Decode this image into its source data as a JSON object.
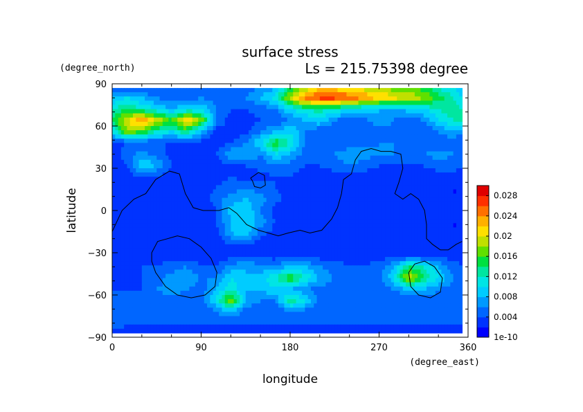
{
  "chart_data": {
    "type": "heatmap",
    "title": "surface stress",
    "subtitle": "Ls = 215.75398 degree",
    "xlabel": "longitude",
    "ylabel": "latitude",
    "x_units": "(degree_east)",
    "y_units": "(degree_north)",
    "xlim": [
      0,
      360
    ],
    "ylim": [
      -90,
      90
    ],
    "x_ticks": [
      "0",
      "90",
      "180",
      "270",
      "360"
    ],
    "y_ticks": [
      "90",
      "60",
      "30",
      "0",
      "−30",
      "−60",
      "−90"
    ],
    "x_tick_values": [
      0,
      90,
      180,
      270,
      360
    ],
    "y_tick_values": [
      90,
      60,
      30,
      0,
      -30,
      -60,
      -90
    ],
    "field_extent": {
      "lon": [
        0,
        354
      ],
      "lat": [
        -87,
        87
      ]
    },
    "colorbar": {
      "labels": [
        "0.028",
        "0.024",
        "0.02",
        "0.016",
        "0.012",
        "0.008",
        "0.004",
        "1e-10"
      ],
      "label_values": [
        0.028,
        0.024,
        0.02,
        0.016,
        0.012,
        0.008,
        0.004,
        0.0
      ],
      "range": [
        0.0,
        0.03
      ],
      "colors": [
        "#0000ff",
        "#0033ff",
        "#0066ff",
        "#0099ff",
        "#00ccff",
        "#00e5e5",
        "#00e6a0",
        "#00e040",
        "#60e000",
        "#c0e000",
        "#ffe000",
        "#ffb000",
        "#ff7000",
        "#ff3000",
        "#e00000"
      ]
    },
    "field_lats": [
      87,
      80,
      72,
      64,
      56,
      48,
      40,
      32,
      24,
      16,
      8,
      0,
      -8,
      -16,
      -24,
      -32,
      -40,
      -48,
      -56,
      -64,
      -72,
      -80,
      -87
    ],
    "field_lons": [
      0,
      15,
      30,
      45,
      60,
      75,
      90,
      105,
      120,
      135,
      150,
      165,
      180,
      195,
      210,
      225,
      240,
      255,
      270,
      285,
      300,
      315,
      330,
      345,
      354
    ],
    "field_values": [
      [
        0.004,
        0.004,
        0.004,
        0.004,
        0.004,
        0.004,
        0.005,
        0.004,
        0.004,
        0.005,
        0.006,
        0.008,
        0.014,
        0.018,
        0.021,
        0.021,
        0.02,
        0.019,
        0.018,
        0.017,
        0.016,
        0.015,
        0.012,
        0.01,
        0.008
      ],
      [
        0.008,
        0.01,
        0.008,
        0.006,
        0.005,
        0.005,
        0.006,
        0.005,
        0.005,
        0.006,
        0.008,
        0.011,
        0.019,
        0.025,
        0.027,
        0.027,
        0.026,
        0.024,
        0.022,
        0.021,
        0.02,
        0.018,
        0.015,
        0.012,
        0.01
      ],
      [
        0.012,
        0.014,
        0.012,
        0.01,
        0.008,
        0.01,
        0.01,
        0.006,
        0.004,
        0.004,
        0.005,
        0.006,
        0.01,
        0.012,
        0.013,
        0.012,
        0.01,
        0.009,
        0.008,
        0.008,
        0.009,
        0.01,
        0.012,
        0.014,
        0.012
      ],
      [
        0.014,
        0.02,
        0.024,
        0.02,
        0.016,
        0.022,
        0.018,
        0.006,
        0.003,
        0.003,
        0.004,
        0.004,
        0.006,
        0.008,
        0.01,
        0.006,
        0.004,
        0.005,
        0.008,
        0.006,
        0.004,
        0.006,
        0.01,
        0.012,
        0.014
      ],
      [
        0.01,
        0.018,
        0.016,
        0.012,
        0.01,
        0.014,
        0.008,
        0.003,
        0.003,
        0.003,
        0.006,
        0.008,
        0.01,
        0.006,
        0.004,
        0.004,
        0.004,
        0.004,
        0.004,
        0.005,
        0.004,
        0.004,
        0.006,
        0.008,
        0.006
      ],
      [
        0.003,
        0.004,
        0.004,
        0.004,
        0.004,
        0.003,
        0.003,
        0.003,
        0.004,
        0.006,
        0.01,
        0.016,
        0.012,
        0.006,
        0.004,
        0.004,
        0.004,
        0.005,
        0.006,
        0.006,
        0.005,
        0.004,
        0.004,
        0.005,
        0.004
      ],
      [
        0.003,
        0.005,
        0.007,
        0.005,
        0.003,
        0.003,
        0.003,
        0.004,
        0.008,
        0.008,
        0.006,
        0.01,
        0.008,
        0.005,
        0.004,
        0.006,
        0.008,
        0.007,
        0.006,
        0.006,
        0.005,
        0.006,
        0.007,
        0.006,
        0.004
      ],
      [
        0.003,
        0.004,
        0.01,
        0.008,
        0.004,
        0.003,
        0.003,
        0.003,
        0.004,
        0.004,
        0.005,
        0.006,
        0.005,
        0.004,
        0.004,
        0.005,
        0.006,
        0.005,
        0.004,
        0.004,
        0.004,
        0.004,
        0.005,
        0.005,
        0.004
      ],
      [
        0.002,
        0.003,
        0.004,
        0.004,
        0.003,
        0.003,
        0.003,
        0.003,
        0.004,
        0.003,
        0.003,
        0.004,
        0.004,
        0.003,
        0.003,
        0.003,
        0.003,
        0.003,
        0.003,
        0.003,
        0.003,
        0.003,
        0.003,
        0.003,
        0.003
      ],
      [
        0.002,
        0.003,
        0.003,
        0.003,
        0.002,
        0.002,
        0.003,
        0.004,
        0.005,
        0.006,
        0.005,
        0.004,
        0.003,
        0.003,
        0.002,
        0.002,
        0.002,
        0.002,
        0.002,
        0.002,
        0.002,
        0.002,
        0.002,
        0.002,
        0.002
      ],
      [
        0.002,
        0.002,
        0.002,
        0.002,
        0.002,
        0.002,
        0.003,
        0.005,
        0.007,
        0.008,
        0.007,
        0.005,
        0.003,
        0.002,
        0.002,
        0.002,
        0.002,
        0.002,
        0.002,
        0.002,
        0.002,
        0.002,
        0.002,
        0.002,
        0.002
      ],
      [
        0.002,
        0.002,
        0.002,
        0.002,
        0.002,
        0.002,
        0.002,
        0.004,
        0.009,
        0.01,
        0.006,
        0.003,
        0.002,
        0.002,
        0.002,
        0.002,
        0.002,
        0.002,
        0.002,
        0.002,
        0.002,
        0.002,
        0.002,
        0.002,
        0.002
      ],
      [
        0.002,
        0.002,
        0.002,
        0.002,
        0.002,
        0.002,
        0.002,
        0.004,
        0.008,
        0.01,
        0.007,
        0.004,
        0.002,
        0.002,
        0.002,
        0.002,
        0.002,
        0.002,
        0.002,
        0.002,
        0.002,
        0.002,
        0.002,
        0.002,
        0.002
      ],
      [
        0.002,
        0.002,
        0.002,
        0.002,
        0.002,
        0.002,
        0.002,
        0.003,
        0.008,
        0.009,
        0.005,
        0.003,
        0.002,
        0.002,
        0.002,
        0.002,
        0.002,
        0.002,
        0.002,
        0.002,
        0.002,
        0.002,
        0.002,
        0.002,
        0.002
      ],
      [
        0.002,
        0.002,
        0.002,
        0.002,
        0.002,
        0.002,
        0.002,
        0.003,
        0.004,
        0.004,
        0.003,
        0.002,
        0.002,
        0.002,
        0.002,
        0.002,
        0.002,
        0.002,
        0.002,
        0.002,
        0.002,
        0.002,
        0.002,
        0.002,
        0.002
      ],
      [
        0.003,
        0.003,
        0.003,
        0.003,
        0.003,
        0.003,
        0.003,
        0.003,
        0.003,
        0.003,
        0.003,
        0.003,
        0.003,
        0.003,
        0.003,
        0.003,
        0.003,
        0.003,
        0.003,
        0.003,
        0.003,
        0.003,
        0.003,
        0.003,
        0.003
      ],
      [
        0.003,
        0.003,
        0.004,
        0.004,
        0.005,
        0.006,
        0.004,
        0.004,
        0.007,
        0.008,
        0.007,
        0.006,
        0.009,
        0.008,
        0.006,
        0.005,
        0.004,
        0.004,
        0.005,
        0.008,
        0.014,
        0.012,
        0.008,
        0.005,
        0.004
      ],
      [
        0.004,
        0.003,
        0.004,
        0.005,
        0.007,
        0.008,
        0.006,
        0.006,
        0.01,
        0.008,
        0.009,
        0.012,
        0.016,
        0.012,
        0.008,
        0.006,
        0.005,
        0.004,
        0.005,
        0.01,
        0.02,
        0.014,
        0.01,
        0.006,
        0.004
      ],
      [
        0.004,
        0.004,
        0.004,
        0.006,
        0.007,
        0.006,
        0.005,
        0.008,
        0.012,
        0.008,
        0.008,
        0.01,
        0.008,
        0.006,
        0.005,
        0.005,
        0.004,
        0.004,
        0.004,
        0.006,
        0.008,
        0.008,
        0.006,
        0.005,
        0.004
      ],
      [
        0.004,
        0.004,
        0.004,
        0.005,
        0.005,
        0.005,
        0.005,
        0.01,
        0.018,
        0.008,
        0.006,
        0.006,
        0.014,
        0.01,
        0.005,
        0.005,
        0.004,
        0.004,
        0.004,
        0.004,
        0.005,
        0.005,
        0.005,
        0.004,
        0.004
      ],
      [
        0.004,
        0.004,
        0.004,
        0.004,
        0.004,
        0.004,
        0.004,
        0.006,
        0.008,
        0.005,
        0.004,
        0.004,
        0.006,
        0.005,
        0.004,
        0.004,
        0.004,
        0.004,
        0.004,
        0.004,
        0.004,
        0.004,
        0.004,
        0.004,
        0.004
      ],
      [
        0.006,
        0.004,
        0.004,
        0.004,
        0.004,
        0.004,
        0.004,
        0.004,
        0.004,
        0.004,
        0.004,
        0.004,
        0.004,
        0.004,
        0.004,
        0.004,
        0.004,
        0.004,
        0.004,
        0.004,
        0.004,
        0.004,
        0.004,
        0.004,
        0.004
      ],
      [
        0.003,
        0.003,
        0.003,
        0.003,
        0.003,
        0.003,
        0.003,
        0.003,
        0.003,
        0.003,
        0.003,
        0.003,
        0.003,
        0.003,
        0.003,
        0.003,
        0.003,
        0.003,
        0.003,
        0.003,
        0.003,
        0.003,
        0.003,
        0.003,
        0.003
      ]
    ],
    "contours": [
      [
        [
          0,
          -15
        ],
        [
          10,
          0
        ],
        [
          22,
          8
        ],
        [
          34,
          12
        ],
        [
          44,
          22
        ],
        [
          58,
          28
        ],
        [
          68,
          26
        ],
        [
          74,
          12
        ],
        [
          82,
          2
        ],
        [
          92,
          0
        ],
        [
          100,
          0
        ],
        [
          108,
          0
        ],
        [
          118,
          2
        ],
        [
          126,
          -2
        ],
        [
          136,
          -10
        ],
        [
          148,
          -14
        ],
        [
          158,
          -16
        ],
        [
          168,
          -18
        ],
        [
          178,
          -16
        ],
        [
          190,
          -14
        ],
        [
          200,
          -16
        ],
        [
          212,
          -14
        ],
        [
          222,
          -6
        ],
        [
          228,
          2
        ],
        [
          232,
          12
        ],
        [
          234,
          22
        ],
        [
          242,
          26
        ],
        [
          246,
          36
        ],
        [
          252,
          42
        ],
        [
          262,
          44
        ],
        [
          272,
          42
        ],
        [
          282,
          42
        ],
        [
          292,
          40
        ],
        [
          294,
          30
        ],
        [
          290,
          20
        ],
        [
          286,
          12
        ],
        [
          294,
          8
        ],
        [
          302,
          12
        ],
        [
          310,
          8
        ],
        [
          316,
          0
        ],
        [
          318,
          -10
        ],
        [
          318,
          -20
        ],
        [
          324,
          -24
        ],
        [
          332,
          -28
        ],
        [
          340,
          -28
        ],
        [
          348,
          -24
        ],
        [
          354,
          -22
        ]
      ],
      [
        [
          140,
          23
        ],
        [
          148,
          27
        ],
        [
          154,
          25
        ],
        [
          155,
          18
        ],
        [
          150,
          16
        ],
        [
          144,
          17
        ],
        [
          142,
          21
        ],
        [
          140,
          23
        ]
      ],
      [
        [
          40,
          -30
        ],
        [
          46,
          -22
        ],
        [
          56,
          -20
        ],
        [
          66,
          -18
        ],
        [
          78,
          -20
        ],
        [
          90,
          -26
        ],
        [
          100,
          -34
        ],
        [
          106,
          -44
        ],
        [
          104,
          -54
        ],
        [
          94,
          -60
        ],
        [
          80,
          -62
        ],
        [
          66,
          -60
        ],
        [
          54,
          -54
        ],
        [
          44,
          -44
        ],
        [
          40,
          -36
        ],
        [
          40,
          -30
        ]
      ],
      [
        [
          300,
          -44
        ],
        [
          306,
          -38
        ],
        [
          316,
          -36
        ],
        [
          326,
          -40
        ],
        [
          334,
          -48
        ],
        [
          332,
          -58
        ],
        [
          322,
          -62
        ],
        [
          310,
          -60
        ],
        [
          302,
          -54
        ],
        [
          300,
          -44
        ]
      ]
    ]
  }
}
